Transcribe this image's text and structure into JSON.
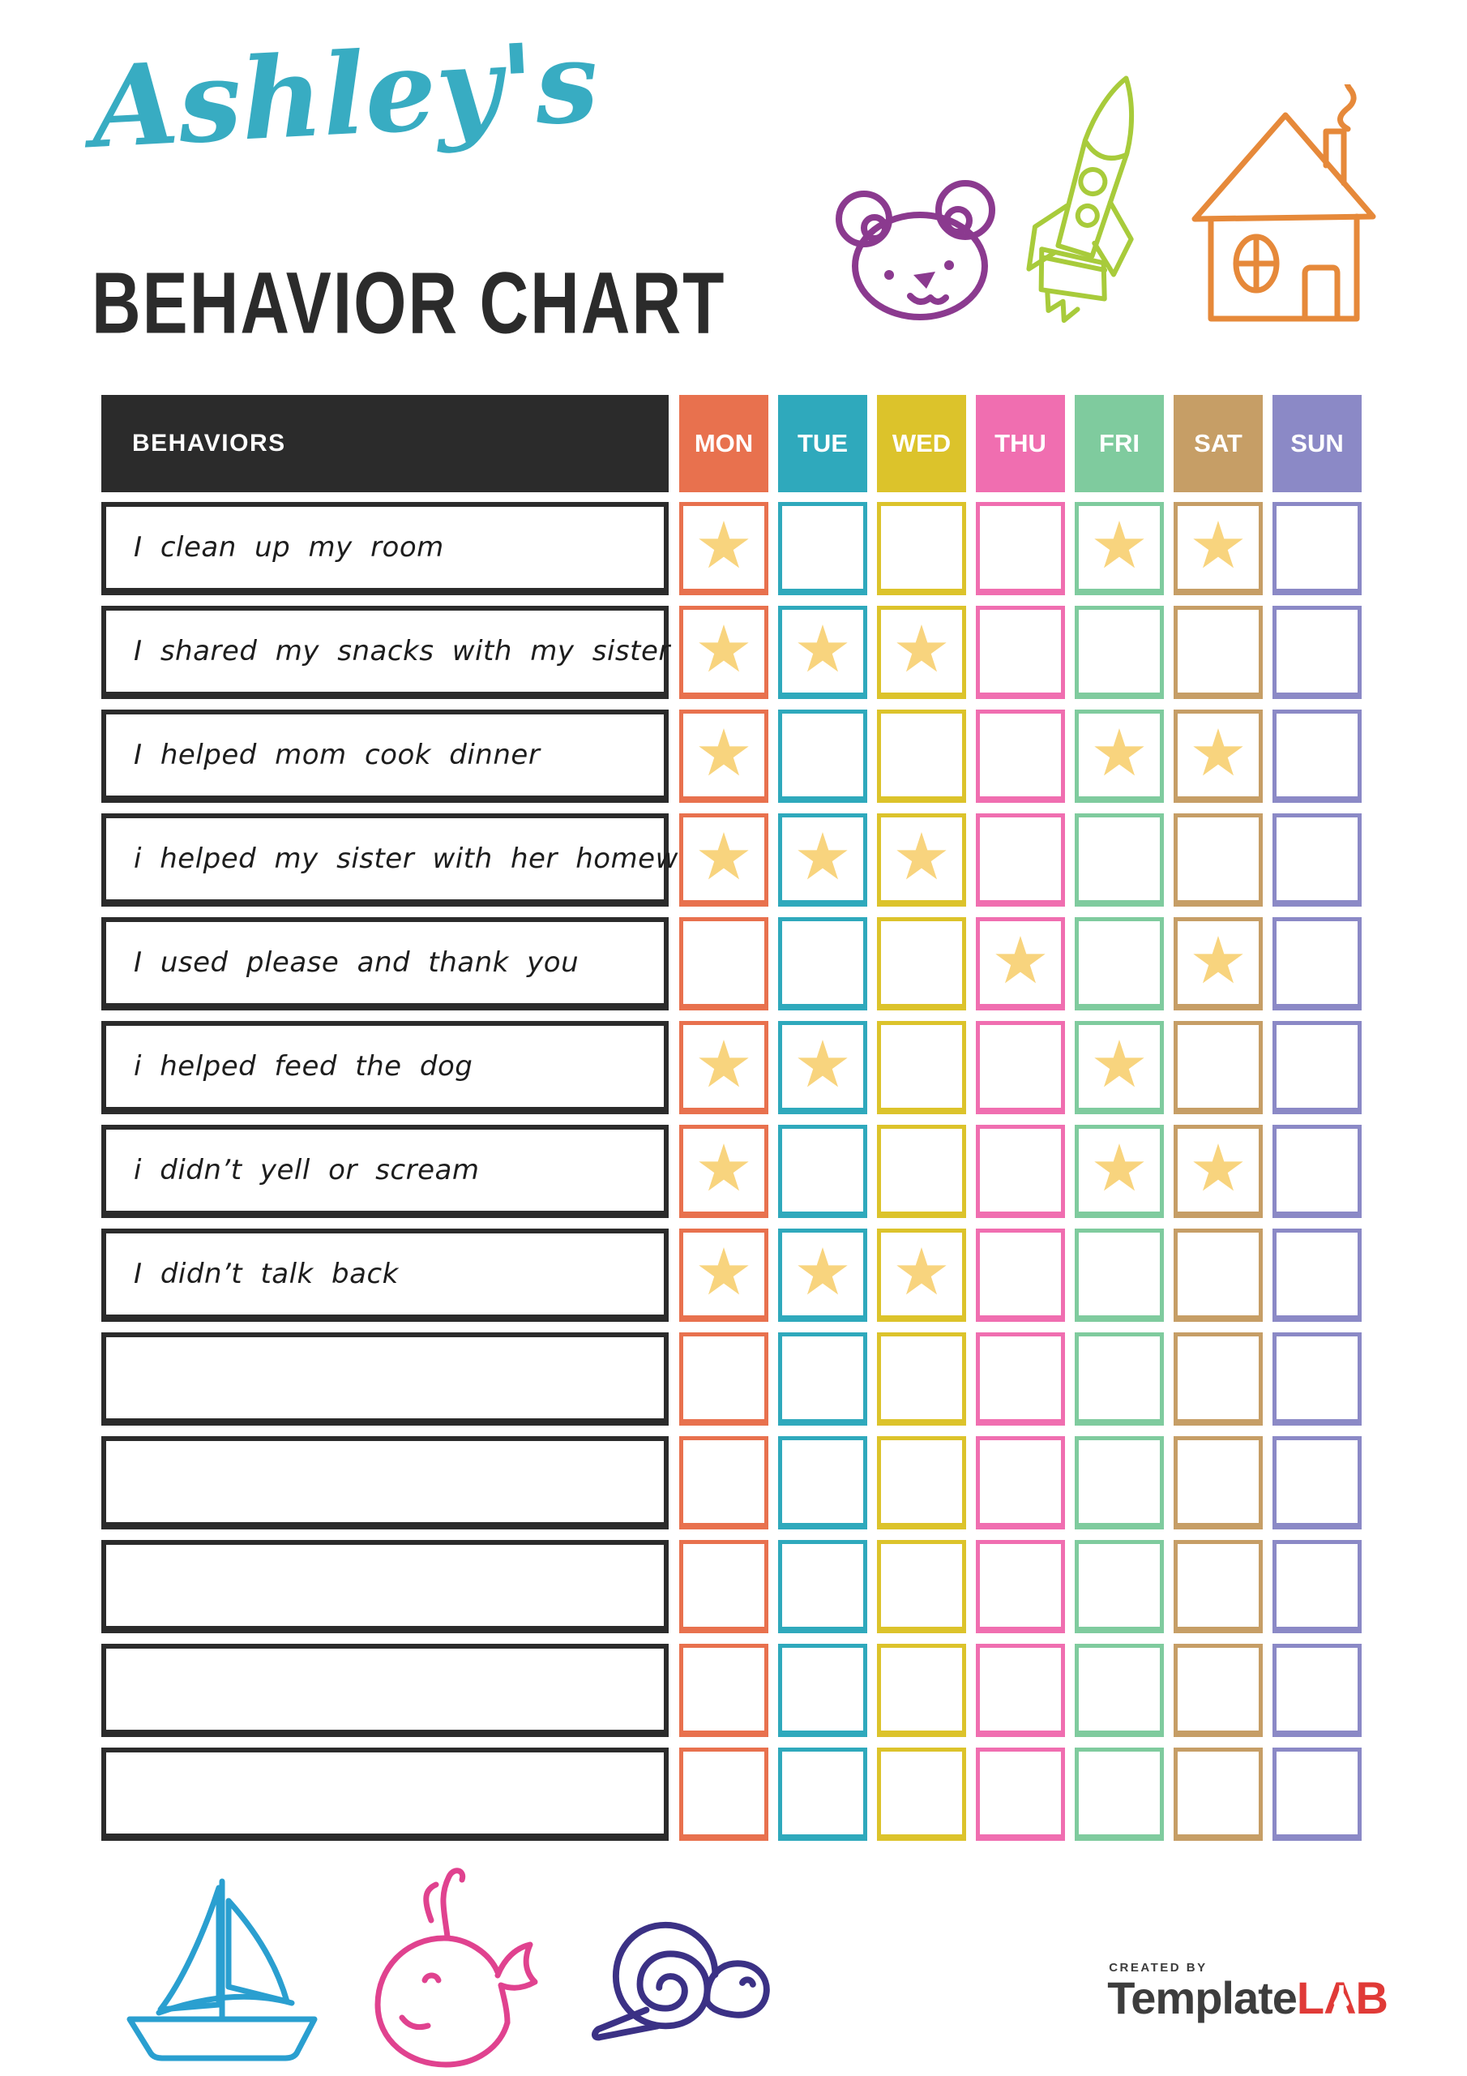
{
  "header": {
    "child_name": "Ashley's",
    "title": "BEHAVIOR CHART"
  },
  "decorations": {
    "top_icons": [
      "bear-doodle",
      "rocket-doodle",
      "house-doodle"
    ],
    "bottom_icons": [
      "sailboat-doodle",
      "whale-doodle",
      "snail-doodle"
    ],
    "colors": {
      "bear": "#8B3A8F",
      "rocket": "#A8CB3B",
      "house": "#E6893A",
      "sailboat": "#2A9FD0",
      "whale": "#E0428F",
      "snail": "#3B3185",
      "title_script": "#38ACC2",
      "title_main": "#2B2B2B"
    }
  },
  "table": {
    "behaviors_header": "BEHAVIORS",
    "header_bg": "#2B2B2B",
    "star_glyph": "★",
    "star_color": "#F8D47E",
    "days": [
      {
        "label": "MON",
        "color": "#E8714E"
      },
      {
        "label": "TUE",
        "color": "#2FA9BC"
      },
      {
        "label": "WED",
        "color": "#DCC32B"
      },
      {
        "label": "THU",
        "color": "#F06EB0"
      },
      {
        "label": "FRI",
        "color": "#7FCB9E"
      },
      {
        "label": "SAT",
        "color": "#C69E66"
      },
      {
        "label": "SUN",
        "color": "#8B89C6"
      }
    ],
    "rows": [
      {
        "label": "I clean up my room",
        "stars": [
          1,
          0,
          0,
          0,
          1,
          1,
          0
        ]
      },
      {
        "label": "I shared my snacks with my sister",
        "stars": [
          1,
          1,
          1,
          0,
          0,
          0,
          0
        ]
      },
      {
        "label": "I helped mom cook dinner",
        "stars": [
          1,
          0,
          0,
          0,
          1,
          1,
          0
        ]
      },
      {
        "label": "i helped my sister with her homework",
        "stars": [
          1,
          1,
          1,
          0,
          0,
          0,
          0
        ]
      },
      {
        "label": "I used please and thank you",
        "stars": [
          0,
          0,
          0,
          1,
          0,
          1,
          0
        ]
      },
      {
        "label": "i helped feed the dog",
        "stars": [
          1,
          1,
          0,
          0,
          1,
          0,
          0
        ]
      },
      {
        "label": "i didn’t yell or scream",
        "stars": [
          1,
          0,
          0,
          0,
          1,
          1,
          0
        ]
      },
      {
        "label": "I didn’t talk back",
        "stars": [
          1,
          1,
          1,
          0,
          0,
          0,
          0
        ]
      },
      {
        "label": "",
        "stars": [
          0,
          0,
          0,
          0,
          0,
          0,
          0
        ]
      },
      {
        "label": "",
        "stars": [
          0,
          0,
          0,
          0,
          0,
          0,
          0
        ]
      },
      {
        "label": "",
        "stars": [
          0,
          0,
          0,
          0,
          0,
          0,
          0
        ]
      },
      {
        "label": "",
        "stars": [
          0,
          0,
          0,
          0,
          0,
          0,
          0
        ]
      },
      {
        "label": "",
        "stars": [
          0,
          0,
          0,
          0,
          0,
          0,
          0
        ]
      }
    ]
  },
  "footer": {
    "created_by": "CREATED BY",
    "brand_name": "Template",
    "brand_suffix": "LAB",
    "brand_color": "#3D3D3D",
    "suffix_color": "#E03A37"
  }
}
